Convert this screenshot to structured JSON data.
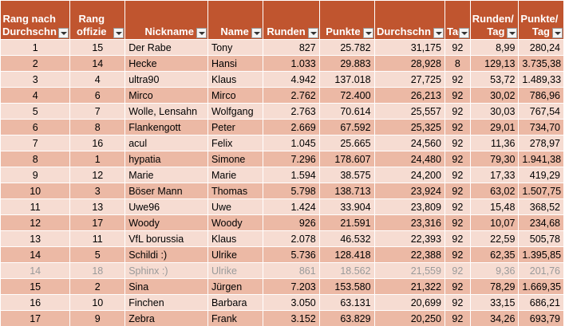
{
  "headers": [
    {
      "label": "Rang nach\nDurchschn"
    },
    {
      "label": "Rang\noffizie"
    },
    {
      "label": "Nickname"
    },
    {
      "label": "Name"
    },
    {
      "label": "Runden"
    },
    {
      "label": "Punkte"
    },
    {
      "label": "Durchschn"
    },
    {
      "label": "Tag"
    },
    {
      "label": "Runden/\nTag"
    },
    {
      "label": "Punkte/\nTag"
    }
  ],
  "rows": [
    {
      "rank_avg": "1",
      "rank_off": "15",
      "nick": "Der Rabe",
      "name": "Tony",
      "runden": "827",
      "punkte": "25.782",
      "avg": "31,175",
      "tage": "92",
      "rpt": "8,99",
      "ppt": "280,24"
    },
    {
      "rank_avg": "2",
      "rank_off": "14",
      "nick": "Hecke",
      "name": "Hansi",
      "runden": "1.033",
      "punkte": "29.883",
      "avg": "28,928",
      "tage": "8",
      "rpt": "129,13",
      "ppt": "3.735,38"
    },
    {
      "rank_avg": "3",
      "rank_off": "4",
      "nick": "ultra90",
      "name": "Klaus",
      "runden": "4.942",
      "punkte": "137.018",
      "avg": "27,725",
      "tage": "92",
      "rpt": "53,72",
      "ppt": "1.489,33"
    },
    {
      "rank_avg": "4",
      "rank_off": "6",
      "nick": "Mirco",
      "name": "Mirco",
      "runden": "2.762",
      "punkte": "72.400",
      "avg": "26,213",
      "tage": "92",
      "rpt": "30,02",
      "ppt": "786,96"
    },
    {
      "rank_avg": "5",
      "rank_off": "7",
      "nick": "Wolle, Lensahn",
      "name": "Wolfgang",
      "runden": "2.763",
      "punkte": "70.614",
      "avg": "25,557",
      "tage": "92",
      "rpt": "30,03",
      "ppt": "767,54"
    },
    {
      "rank_avg": "6",
      "rank_off": "8",
      "nick": "Flankengott",
      "name": "Peter",
      "runden": "2.669",
      "punkte": "67.592",
      "avg": "25,325",
      "tage": "92",
      "rpt": "29,01",
      "ppt": "734,70"
    },
    {
      "rank_avg": "7",
      "rank_off": "16",
      "nick": "acul",
      "name": "Felix",
      "runden": "1.045",
      "punkte": "25.665",
      "avg": "24,560",
      "tage": "92",
      "rpt": "11,36",
      "ppt": "278,97"
    },
    {
      "rank_avg": "8",
      "rank_off": "1",
      "nick": "hypatia",
      "name": "Simone",
      "runden": "7.296",
      "punkte": "178.607",
      "avg": "24,480",
      "tage": "92",
      "rpt": "79,30",
      "ppt": "1.941,38"
    },
    {
      "rank_avg": "9",
      "rank_off": "12",
      "nick": "Marie",
      "name": "Marie",
      "runden": "1.594",
      "punkte": "38.575",
      "avg": "24,200",
      "tage": "92",
      "rpt": "17,33",
      "ppt": "419,29"
    },
    {
      "rank_avg": "10",
      "rank_off": "3",
      "nick": "Böser Mann",
      "name": "Thomas",
      "runden": "5.798",
      "punkte": "138.713",
      "avg": "23,924",
      "tage": "92",
      "rpt": "63,02",
      "ppt": "1.507,75"
    },
    {
      "rank_avg": "11",
      "rank_off": "13",
      "nick": "Uwe96",
      "name": "Uwe",
      "runden": "1.424",
      "punkte": "33.904",
      "avg": "23,809",
      "tage": "92",
      "rpt": "15,48",
      "ppt": "368,52"
    },
    {
      "rank_avg": "12",
      "rank_off": "17",
      "nick": "Woody",
      "name": "Woody",
      "runden": "926",
      "punkte": "21.591",
      "avg": "23,316",
      "tage": "92",
      "rpt": "10,07",
      "ppt": "234,68"
    },
    {
      "rank_avg": "13",
      "rank_off": "11",
      "nick": "VfL borussia",
      "name": "Klaus",
      "runden": "2.078",
      "punkte": "46.532",
      "avg": "22,393",
      "tage": "92",
      "rpt": "22,59",
      "ppt": "505,78"
    },
    {
      "rank_avg": "14",
      "rank_off": "5",
      "nick": "Schildi :)",
      "name": "Ulrike",
      "runden": "5.736",
      "punkte": "128.418",
      "avg": "22,388",
      "tage": "92",
      "rpt": "62,35",
      "ppt": "1.395,85"
    },
    {
      "rank_avg": "14",
      "rank_off": "18",
      "nick": "Sphinx :)",
      "name": "Ulrike",
      "runden": "861",
      "punkte": "18.562",
      "avg": "21,559",
      "tage": "92",
      "rpt": "9,36",
      "ppt": "201,76",
      "dim": true
    },
    {
      "rank_avg": "15",
      "rank_off": "2",
      "nick": "Sina",
      "name": "Jürgen",
      "runden": "7.203",
      "punkte": "153.580",
      "avg": "21,322",
      "tage": "92",
      "rpt": "78,29",
      "ppt": "1.669,35"
    },
    {
      "rank_avg": "16",
      "rank_off": "10",
      "nick": "Finchen",
      "name": "Barbara",
      "runden": "3.050",
      "punkte": "63.131",
      "avg": "20,699",
      "tage": "92",
      "rpt": "33,15",
      "ppt": "686,21"
    },
    {
      "rank_avg": "17",
      "rank_off": "9",
      "nick": "Zebra",
      "name": "Frank",
      "runden": "3.152",
      "punkte": "63.829",
      "avg": "20,250",
      "tage": "92",
      "rpt": "34,26",
      "ppt": "693,79"
    }
  ]
}
